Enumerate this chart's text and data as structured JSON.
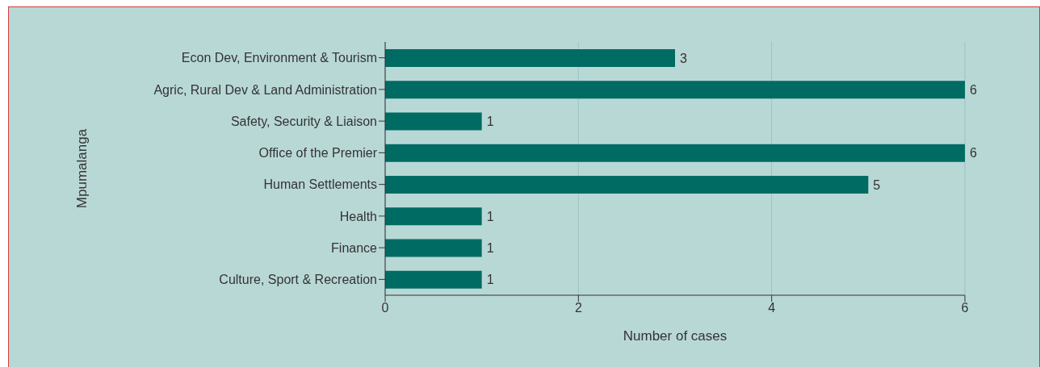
{
  "chart_data": {
    "type": "bar",
    "orientation": "horizontal",
    "ylabel": "Mpumalanga",
    "xlabel": "Number of cases",
    "categories": [
      "Econ Dev, Environment & Tourism",
      "Agric, Rural Dev & Land Administration",
      "Safety, Security & Liaison",
      "Office of the Premier",
      "Human Settlements",
      "Health",
      "Finance",
      "Culture, Sport & Recreation"
    ],
    "values": [
      3,
      6,
      1,
      6,
      5,
      1,
      1,
      1
    ],
    "color": "#006b63",
    "xlim": [
      0,
      6
    ],
    "xticks": [
      0,
      2,
      4,
      6
    ],
    "grid": "x",
    "data_labels": true
  }
}
